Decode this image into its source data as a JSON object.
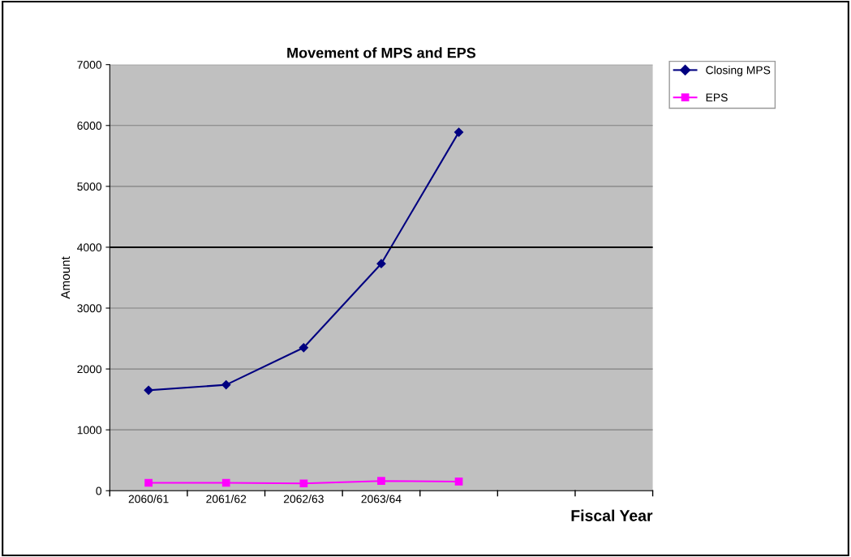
{
  "chart_data": {
    "type": "line",
    "title": "Movement of MPS and EPS",
    "xlabel": "Fiscal Year",
    "ylabel": "Amount",
    "categories": [
      "2060/61",
      "2061/62",
      "2062/63",
      "2063/64",
      null,
      null,
      null
    ],
    "series": [
      {
        "name": "Closing MPS",
        "color": "#000080",
        "marker": "diamond",
        "values": [
          1650,
          1740,
          2350,
          3730,
          5890,
          null,
          null
        ]
      },
      {
        "name": "EPS",
        "color": "#ff00ff",
        "marker": "square",
        "values": [
          130,
          130,
          120,
          160,
          150,
          null,
          null
        ]
      }
    ],
    "ylim": [
      0,
      7000
    ],
    "yticks": [
      0,
      1000,
      2000,
      3000,
      4000,
      5000,
      6000,
      7000
    ],
    "grid": "y",
    "legend": "top right",
    "ref_lines": [
      {
        "axis": "y",
        "value": 4000,
        "color": "#000000"
      }
    ]
  }
}
